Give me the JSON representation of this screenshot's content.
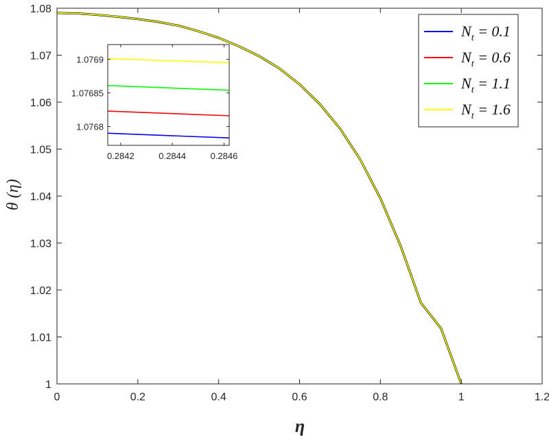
{
  "chart_data": {
    "type": "line",
    "xlabel": "η",
    "ylabel": "θ (η)",
    "xlim": [
      0,
      1.2
    ],
    "ylim": [
      1,
      1.08
    ],
    "xticks": [
      "0",
      "0.2",
      "0.4",
      "0.6",
      "0.8",
      "1",
      "1.2"
    ],
    "yticks": [
      "1",
      "1.01",
      "1.02",
      "1.03",
      "1.04",
      "1.05",
      "1.06",
      "1.07",
      "1.08"
    ],
    "grid": false,
    "legend_position": "top-right",
    "colors": {
      "axis": "#262626",
      "background": "#ffffff"
    },
    "series": [
      {
        "name": "Nt = 0.1",
        "legend_base": "N",
        "legend_sub": "t",
        "legend_rest": " = 0.1",
        "color": "#0000ff"
      },
      {
        "name": "Nt = 0.6",
        "legend_base": "N",
        "legend_sub": "t",
        "legend_rest": " = 0.6",
        "color": "#ff0000"
      },
      {
        "name": "Nt = 1.1",
        "legend_base": "N",
        "legend_sub": "t",
        "legend_rest": " = 1.1",
        "color": "#00ff00"
      },
      {
        "name": "Nt = 1.6",
        "legend_base": "N",
        "legend_sub": "t",
        "legend_rest": " = 1.6",
        "color": "#ffff00"
      }
    ],
    "main_curve": {
      "x": [
        0,
        0.05,
        0.1,
        0.15,
        0.2,
        0.25,
        0.3,
        0.35,
        0.4,
        0.45,
        0.5,
        0.55,
        0.6,
        0.65,
        0.7,
        0.75,
        0.8,
        0.85,
        0.9,
        0.95,
        1.0
      ],
      "y": [
        1.079,
        1.0789,
        1.0786,
        1.0782,
        1.0777,
        1.0771,
        1.0763,
        1.0751,
        1.0737,
        1.0719,
        1.0698,
        1.0672,
        1.0638,
        1.0596,
        1.0544,
        1.0478,
        1.0395,
        1.0294,
        1.0173,
        1.0118,
        1.0
      ]
    },
    "inset": {
      "xlim": [
        0.28415,
        0.28462
      ],
      "ylim": [
        1.076772,
        1.076922
      ],
      "xticks": [
        "0.2842",
        "0.2844",
        "0.2846"
      ],
      "yticks": [
        "1.0768",
        "1.07685",
        "1.0769"
      ],
      "lines": [
        {
          "series": "Nt = 0.1",
          "x": [
            0.28415,
            0.28462
          ],
          "y": [
            1.07679,
            1.076783
          ]
        },
        {
          "series": "Nt = 0.6",
          "x": [
            0.28415,
            0.28462
          ],
          "y": [
            1.076823,
            1.076816
          ]
        },
        {
          "series": "Nt = 1.1",
          "x": [
            0.28415,
            0.28462
          ],
          "y": [
            1.076861,
            1.076854
          ]
        },
        {
          "series": "Nt = 1.6",
          "x": [
            0.28415,
            0.28462
          ],
          "y": [
            1.076901,
            1.076895
          ]
        }
      ]
    }
  }
}
